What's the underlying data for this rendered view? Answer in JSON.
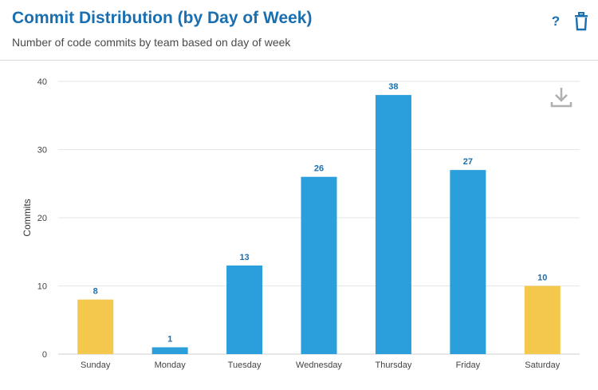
{
  "header": {
    "title": "Commit Distribution (by Day of Week)",
    "subtitle": "Number of code commits by team based on day of week",
    "help_label": "?"
  },
  "icons": {
    "help": "question-mark-icon",
    "delete": "trash-icon",
    "download": "download-icon"
  },
  "colors": {
    "weekday": "#2b9fdc",
    "weekend": "#f4c84c",
    "accent": "#1a6fb0"
  },
  "chart_data": {
    "type": "bar",
    "title": "Commit Distribution (by Day of Week)",
    "subtitle": "Number of code commits by team based on day of week",
    "xlabel": "",
    "ylabel": "Commits",
    "categories": [
      "Sunday",
      "Monday",
      "Tuesday",
      "Wednesday",
      "Thursday",
      "Friday",
      "Saturday"
    ],
    "values": [
      8,
      1,
      13,
      26,
      38,
      27,
      10
    ],
    "colors": [
      "#f4c84c",
      "#2b9fdc",
      "#2b9fdc",
      "#2b9fdc",
      "#2b9fdc",
      "#2b9fdc",
      "#f4c84c"
    ],
    "ylim": [
      0,
      40
    ],
    "yticks": [
      0,
      10,
      20,
      30,
      40
    ],
    "grid": true,
    "legend": "none"
  }
}
